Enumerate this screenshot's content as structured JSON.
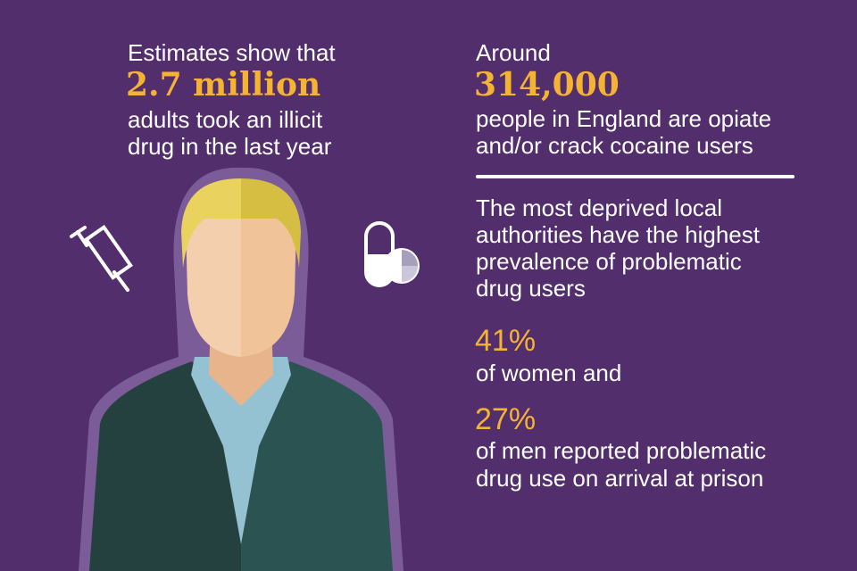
{
  "left": {
    "intro": "Estimates show that",
    "figure": "2.7 million",
    "lines": [
      "adults took an illicit",
      "drug in the last year"
    ]
  },
  "right": {
    "opiate": {
      "intro": "Around",
      "figure": "314,000",
      "lines": [
        "people in England are opiate",
        "and/or crack cocaine users"
      ]
    },
    "deprived": {
      "lines": [
        "The most deprived local",
        "authorities have the highest",
        "prevalence of problematic",
        "drug users"
      ]
    },
    "women": {
      "figure": "41%",
      "lines": [
        "of women and"
      ]
    },
    "men": {
      "figure": "27%",
      "lines": [
        "of men reported problematic",
        "drug use on arrival at prison"
      ]
    }
  }
}
